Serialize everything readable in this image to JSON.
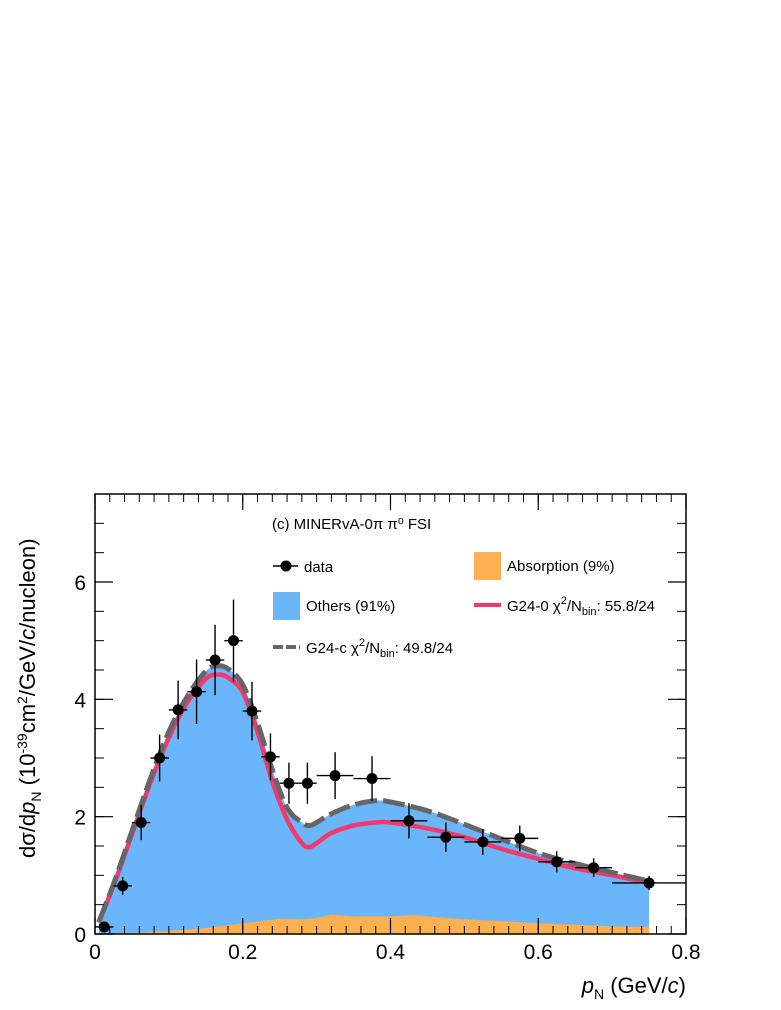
{
  "chart_data": {
    "type": "line",
    "title": "(c) MINERvA-0π  π⁰ FSI",
    "xlabel": "p_N (GeV/c)",
    "ylabel": "dσ/dp_N (10^-39 cm²/GeV/c/nucleon)",
    "xlim": [
      0,
      0.8
    ],
    "ylim": [
      0,
      7.5
    ],
    "x_ticks": [
      "0",
      "0.2",
      "0.4",
      "0.6",
      "0.8"
    ],
    "y_ticks": [
      "0",
      "2",
      "4",
      "6"
    ],
    "colors": {
      "data": "#000000",
      "others": "#6bb6fa",
      "absorption": "#fcb050",
      "g24_0": "#f2386c",
      "g24_c": "#666666"
    },
    "data_points": [
      {
        "x": 0.0125,
        "y": 0.12,
        "xerr": 0.0125,
        "yerr": 0.05
      },
      {
        "x": 0.0375,
        "y": 0.82,
        "xerr": 0.0125,
        "yerr": 0.15
      },
      {
        "x": 0.0625,
        "y": 1.9,
        "xerr": 0.0125,
        "yerr": 0.3
      },
      {
        "x": 0.0875,
        "y": 3.0,
        "xerr": 0.0125,
        "yerr": 0.4
      },
      {
        "x": 0.1125,
        "y": 3.82,
        "xerr": 0.0125,
        "yerr": 0.5
      },
      {
        "x": 0.1375,
        "y": 4.13,
        "xerr": 0.0125,
        "yerr": 0.55
      },
      {
        "x": 0.1625,
        "y": 4.67,
        "xerr": 0.0125,
        "yerr": 0.6
      },
      {
        "x": 0.1875,
        "y": 5.0,
        "xerr": 0.0125,
        "yerr": 0.7
      },
      {
        "x": 0.2125,
        "y": 3.8,
        "xerr": 0.0125,
        "yerr": 0.5
      },
      {
        "x": 0.2375,
        "y": 3.02,
        "xerr": 0.0125,
        "yerr": 0.4
      },
      {
        "x": 0.2625,
        "y": 2.57,
        "xerr": 0.0125,
        "yerr": 0.35
      },
      {
        "x": 0.2875,
        "y": 2.57,
        "xerr": 0.0125,
        "yerr": 0.35
      },
      {
        "x": 0.325,
        "y": 2.7,
        "xerr": 0.025,
        "yerr": 0.4
      },
      {
        "x": 0.375,
        "y": 2.65,
        "xerr": 0.025,
        "yerr": 0.38
      },
      {
        "x": 0.425,
        "y": 1.93,
        "xerr": 0.025,
        "yerr": 0.3
      },
      {
        "x": 0.475,
        "y": 1.65,
        "xerr": 0.025,
        "yerr": 0.25
      },
      {
        "x": 0.525,
        "y": 1.57,
        "xerr": 0.025,
        "yerr": 0.22
      },
      {
        "x": 0.575,
        "y": 1.63,
        "xerr": 0.025,
        "yerr": 0.22
      },
      {
        "x": 0.625,
        "y": 1.23,
        "xerr": 0.025,
        "yerr": 0.18
      },
      {
        "x": 0.675,
        "y": 1.13,
        "xerr": 0.025,
        "yerr": 0.16
      },
      {
        "x": 0.75,
        "y": 0.87,
        "xerr": 0.05,
        "yerr": 0.12
      }
    ],
    "series": [
      {
        "name": "Others (91%)",
        "kind": "fill",
        "x": [
          0.005,
          0.025,
          0.05,
          0.075,
          0.1,
          0.125,
          0.15,
          0.165,
          0.18,
          0.2,
          0.22,
          0.24,
          0.26,
          0.28,
          0.29,
          0.3,
          0.32,
          0.35,
          0.38,
          0.4,
          0.45,
          0.5,
          0.55,
          0.6,
          0.65,
          0.7,
          0.75
        ],
        "y": [
          0.2,
          0.85,
          1.75,
          2.65,
          3.45,
          4.05,
          4.48,
          4.57,
          4.52,
          4.25,
          3.6,
          2.8,
          2.15,
          1.9,
          1.85,
          1.9,
          2.05,
          2.2,
          2.27,
          2.25,
          2.1,
          1.87,
          1.62,
          1.38,
          1.2,
          1.05,
          0.9
        ]
      },
      {
        "name": "Absorption (9%)",
        "kind": "fill",
        "x": [
          0.005,
          0.05,
          0.1,
          0.15,
          0.2,
          0.25,
          0.28,
          0.3,
          0.32,
          0.35,
          0.4,
          0.43,
          0.5,
          0.55,
          0.6,
          0.65,
          0.7,
          0.75
        ],
        "y": [
          0.0,
          0.02,
          0.05,
          0.1,
          0.18,
          0.26,
          0.25,
          0.27,
          0.33,
          0.3,
          0.3,
          0.32,
          0.25,
          0.22,
          0.18,
          0.16,
          0.13,
          0.12
        ]
      },
      {
        "name": "G24-0",
        "legend": "G24-0 χ²/N_bin: 55.8/24",
        "kind": "line",
        "x": [
          0.005,
          0.025,
          0.05,
          0.075,
          0.1,
          0.125,
          0.15,
          0.165,
          0.18,
          0.2,
          0.22,
          0.24,
          0.26,
          0.28,
          0.29,
          0.3,
          0.32,
          0.35,
          0.38,
          0.4,
          0.45,
          0.5,
          0.55,
          0.6,
          0.65,
          0.7,
          0.75
        ],
        "y": [
          0.2,
          0.82,
          1.7,
          2.58,
          3.35,
          3.95,
          4.35,
          4.42,
          4.37,
          4.12,
          3.45,
          2.6,
          1.95,
          1.55,
          1.48,
          1.55,
          1.72,
          1.85,
          1.9,
          1.9,
          1.8,
          1.65,
          1.45,
          1.28,
          1.12,
          1.0,
          0.87
        ]
      },
      {
        "name": "G24-c",
        "legend": "G24-c χ²/N_bin: 49.8/24",
        "kind": "dashed",
        "x": [
          0.005,
          0.025,
          0.05,
          0.075,
          0.1,
          0.125,
          0.15,
          0.165,
          0.18,
          0.2,
          0.22,
          0.24,
          0.26,
          0.28,
          0.29,
          0.3,
          0.32,
          0.35,
          0.38,
          0.4,
          0.45,
          0.5,
          0.55,
          0.6,
          0.65,
          0.7,
          0.75
        ],
        "y": [
          0.2,
          0.85,
          1.75,
          2.65,
          3.45,
          4.05,
          4.48,
          4.57,
          4.52,
          4.25,
          3.6,
          2.8,
          2.15,
          1.9,
          1.85,
          1.9,
          2.05,
          2.2,
          2.27,
          2.25,
          2.1,
          1.87,
          1.62,
          1.38,
          1.2,
          1.05,
          0.9
        ]
      }
    ],
    "legend": {
      "placement": "top",
      "title": "(c) MINERvA-0π  π⁰ FSI",
      "entries": {
        "data": "data",
        "absorption": "Absorption (9%)",
        "others": "Others (91%)",
        "g24_0_name": "G24-0",
        "g24_0_chi": "χ",
        "g24_0_value": ": 55.8/24",
        "g24_c_name": "G24-c",
        "g24_c_chi": "χ",
        "g24_c_value": ": 49.8/24",
        "chi_sup": "2",
        "n_label": "/N",
        "n_sub": "bin"
      }
    },
    "axis_text": {
      "x_p": "p",
      "x_sub": "N",
      "x_unit": " (GeV/",
      "x_c": "c",
      "x_close": ")",
      "y_pre": "dσ/d",
      "y_p": "p",
      "y_sub": "N",
      "y_unit1": "  (10",
      "y_exp": "-39",
      "y_unit2": "cm",
      "y_sq": "2",
      "y_unit3": "/GeV/",
      "y_c": "c",
      "y_unit4": "/nucleon)"
    }
  }
}
